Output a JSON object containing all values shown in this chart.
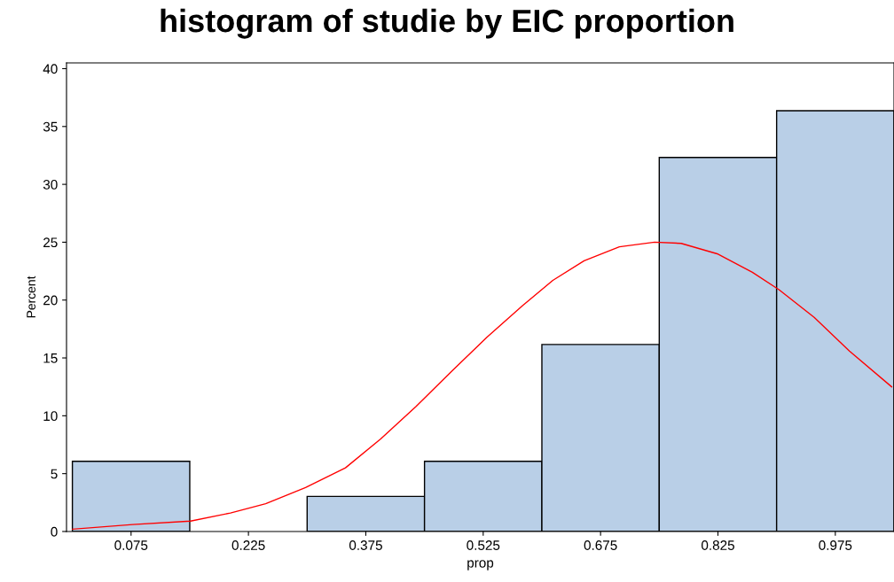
{
  "chart_data": {
    "type": "histogram",
    "title": "histogram of studie by EIC proportion",
    "xlabel": "prop",
    "ylabel": "Percent",
    "bins": [
      0,
      0.15,
      0.3,
      0.45,
      0.6,
      0.75,
      0.9,
      1.05
    ],
    "values": [
      6.06,
      0,
      3.03,
      6.06,
      16.16,
      32.32,
      36.36
    ],
    "color": "#b9cfe7",
    "series": [
      {
        "type": "line",
        "color": "#ff0000",
        "x": [
          0.0004,
          0.077,
          0.151,
          0.202,
          0.247,
          0.298,
          0.349,
          0.394,
          0.439,
          0.484,
          0.53,
          0.575,
          0.614,
          0.654,
          0.699,
          0.744,
          0.778,
          0.824,
          0.869,
          0.903,
          0.948,
          0.993,
          1.047
        ],
        "values": [
          0.2,
          0.6,
          0.9,
          1.6,
          2.4,
          3.8,
          5.5,
          8.0,
          10.8,
          13.8,
          16.8,
          19.5,
          21.7,
          23.4,
          24.6,
          25.0,
          24.9,
          24.0,
          22.4,
          20.9,
          18.5,
          15.6,
          12.5
        ]
      }
    ],
    "xlim": [
      -0.0075,
      1.05
    ],
    "ylim": [
      0,
      40.5
    ],
    "xticks": [
      0.075,
      0.225,
      0.375,
      0.525,
      0.675,
      0.825,
      0.975
    ],
    "yticks": [
      0,
      5,
      10,
      15,
      20,
      25,
      30,
      35,
      40
    ],
    "grid": false,
    "legend": false
  }
}
